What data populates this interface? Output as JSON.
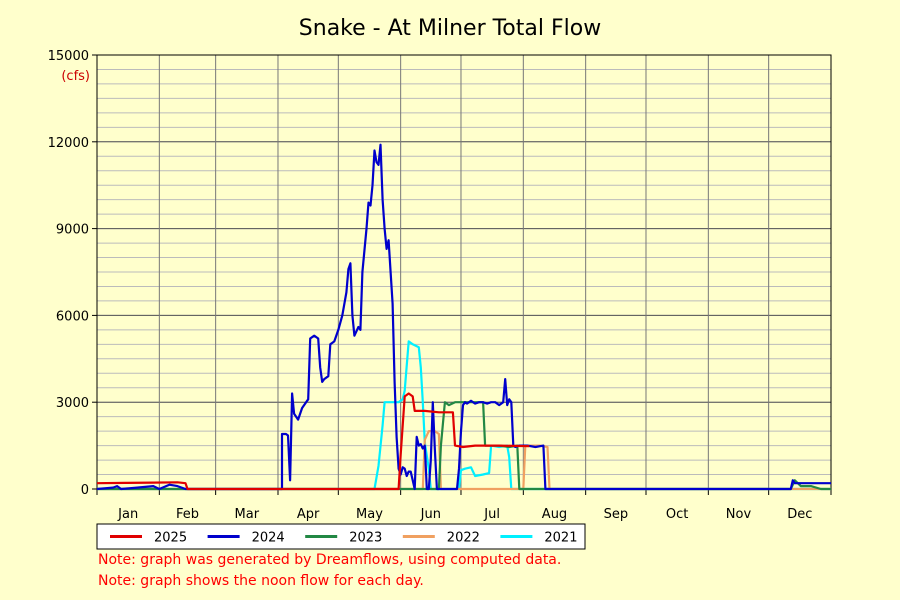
{
  "chart_data": {
    "type": "line",
    "title": "Snake - At Milner Total Flow",
    "ylabel": "(cfs)",
    "ylim": [
      0,
      15000
    ],
    "yticks": [
      0,
      3000,
      6000,
      9000,
      12000,
      15000
    ],
    "yticklabels": [
      "0",
      "3000",
      "6000",
      "9000",
      "12000",
      "15000"
    ],
    "xlim": [
      0,
      365
    ],
    "months": [
      "Jan",
      "Feb",
      "Mar",
      "Apr",
      "May",
      "Jun",
      "Jul",
      "Aug",
      "Sep",
      "Oct",
      "Nov",
      "Dec"
    ],
    "grid": true,
    "legend_position": "bottom",
    "series": [
      {
        "name": "2025",
        "color": "#e00000",
        "points": [
          [
            0,
            200
          ],
          [
            14,
            210
          ],
          [
            28,
            220
          ],
          [
            40,
            230
          ],
          [
            44,
            200
          ],
          [
            45,
            0
          ],
          [
            90,
            0
          ],
          [
            120,
            0
          ],
          [
            145,
            0
          ],
          [
            150,
            0
          ],
          [
            151,
            1200
          ],
          [
            153,
            3200
          ],
          [
            155,
            3300
          ],
          [
            157,
            3200
          ],
          [
            158,
            2700
          ],
          [
            163,
            2700
          ],
          [
            170,
            2650
          ],
          [
            176,
            2650
          ],
          [
            176,
            2650
          ],
          [
            177,
            2650
          ],
          [
            178,
            1500
          ],
          [
            182,
            1450
          ],
          [
            188,
            1500
          ],
          [
            200,
            1500
          ],
          [
            215,
            1480
          ]
        ]
      },
      {
        "name": "2024",
        "color": "#0000cc",
        "points": [
          [
            0,
            0
          ],
          [
            8,
            50
          ],
          [
            10,
            100
          ],
          [
            12,
            0
          ],
          [
            20,
            50
          ],
          [
            28,
            100
          ],
          [
            31,
            0
          ],
          [
            36,
            150
          ],
          [
            40,
            100
          ],
          [
            44,
            0
          ],
          [
            80,
            0
          ],
          [
            92,
            0
          ],
          [
            92,
            1900
          ],
          [
            94,
            1900
          ],
          [
            95,
            1850
          ],
          [
            96,
            300
          ],
          [
            97,
            3300
          ],
          [
            98,
            2600
          ],
          [
            100,
            2400
          ],
          [
            102,
            2800
          ],
          [
            104,
            3000
          ],
          [
            105,
            3100
          ],
          [
            106,
            5200
          ],
          [
            108,
            5300
          ],
          [
            110,
            5200
          ],
          [
            111,
            4200
          ],
          [
            112,
            3700
          ],
          [
            113,
            3800
          ],
          [
            115,
            3900
          ],
          [
            116,
            5000
          ],
          [
            118,
            5100
          ],
          [
            120,
            5500
          ],
          [
            122,
            6000
          ],
          [
            124,
            6800
          ],
          [
            125,
            7600
          ],
          [
            126,
            7800
          ],
          [
            127,
            6000
          ],
          [
            128,
            5300
          ],
          [
            130,
            5600
          ],
          [
            131,
            5500
          ],
          [
            132,
            7500
          ],
          [
            134,
            9000
          ],
          [
            135,
            9900
          ],
          [
            136,
            9800
          ],
          [
            137,
            10500
          ],
          [
            138,
            11700
          ],
          [
            139,
            11300
          ],
          [
            140,
            11200
          ],
          [
            141,
            11900
          ],
          [
            142,
            10000
          ],
          [
            143,
            9000
          ],
          [
            144,
            8300
          ],
          [
            145,
            8600
          ],
          [
            146,
            7500
          ],
          [
            147,
            6400
          ],
          [
            148,
            3700
          ],
          [
            149,
            1800
          ],
          [
            150,
            700
          ],
          [
            151,
            500
          ],
          [
            152,
            750
          ],
          [
            153,
            700
          ],
          [
            154,
            450
          ],
          [
            155,
            600
          ],
          [
            156,
            600
          ],
          [
            157,
            300
          ],
          [
            158,
            0
          ],
          [
            159,
            1800
          ],
          [
            160,
            1500
          ],
          [
            161,
            1550
          ],
          [
            162,
            1400
          ],
          [
            163,
            1500
          ],
          [
            164,
            0
          ],
          [
            165,
            0
          ],
          [
            166,
            1000
          ],
          [
            167,
            3000
          ],
          [
            168,
            1400
          ],
          [
            169,
            0
          ],
          [
            179,
            0
          ],
          [
            180,
            700
          ],
          [
            181,
            2000
          ],
          [
            182,
            2900
          ],
          [
            183,
            3000
          ],
          [
            184,
            2950
          ],
          [
            186,
            3050
          ],
          [
            188,
            2950
          ],
          [
            190,
            3000
          ],
          [
            192,
            3000
          ],
          [
            194,
            2950
          ],
          [
            196,
            3000
          ],
          [
            198,
            3000
          ],
          [
            200,
            2900
          ],
          [
            202,
            3000
          ],
          [
            203,
            3800
          ],
          [
            204,
            2900
          ],
          [
            205,
            3100
          ],
          [
            206,
            3000
          ],
          [
            207,
            1500
          ],
          [
            208,
            1450
          ],
          [
            210,
            1500
          ],
          [
            214,
            1500
          ],
          [
            218,
            1450
          ],
          [
            222,
            1500
          ],
          [
            223,
            0
          ],
          [
            240,
            0
          ],
          [
            300,
            0
          ],
          [
            345,
            0
          ],
          [
            346,
            300
          ],
          [
            347,
            200
          ],
          [
            355,
            200
          ],
          [
            365,
            200
          ]
        ]
      },
      {
        "name": "2023",
        "color": "#228844",
        "points": [
          [
            0,
            0
          ],
          [
            150,
            0
          ],
          [
            170,
            0
          ],
          [
            171,
            1500
          ],
          [
            173,
            3000
          ],
          [
            175,
            2900
          ],
          [
            178,
            3000
          ],
          [
            185,
            3000
          ],
          [
            190,
            3000
          ],
          [
            192,
            3000
          ],
          [
            193,
            1500
          ],
          [
            196,
            1500
          ],
          [
            200,
            1500
          ],
          [
            205,
            1450
          ],
          [
            209,
            1500
          ],
          [
            210,
            0
          ],
          [
            230,
            0
          ],
          [
            345,
            0
          ],
          [
            347,
            300
          ],
          [
            350,
            100
          ],
          [
            355,
            100
          ],
          [
            360,
            0
          ],
          [
            365,
            0
          ]
        ]
      },
      {
        "name": "2022",
        "color": "#f0a060",
        "points": [
          [
            0,
            0
          ],
          [
            150,
            0
          ],
          [
            162,
            0
          ],
          [
            163,
            1700
          ],
          [
            165,
            2000
          ],
          [
            168,
            2000
          ],
          [
            170,
            1900
          ],
          [
            171,
            0
          ],
          [
            175,
            0
          ],
          [
            212,
            0
          ],
          [
            213,
            1500
          ],
          [
            220,
            1500
          ],
          [
            224,
            1450
          ],
          [
            225,
            0
          ],
          [
            365,
            0
          ]
        ]
      },
      {
        "name": "2021",
        "color": "#00f0ff",
        "points": [
          [
            0,
            0
          ],
          [
            138,
            0
          ],
          [
            140,
            800
          ],
          [
            142,
            2200
          ],
          [
            143,
            3000
          ],
          [
            146,
            3000
          ],
          [
            150,
            3000
          ],
          [
            152,
            3100
          ],
          [
            153,
            3400
          ],
          [
            155,
            5100
          ],
          [
            157,
            5000
          ],
          [
            160,
            4900
          ],
          [
            161,
            4200
          ],
          [
            162,
            3000
          ],
          [
            163,
            1600
          ],
          [
            165,
            700
          ],
          [
            166,
            0
          ],
          [
            180,
            0
          ],
          [
            181,
            650
          ],
          [
            183,
            700
          ],
          [
            186,
            750
          ],
          [
            188,
            450
          ],
          [
            192,
            500
          ],
          [
            195,
            550
          ],
          [
            196,
            1500
          ],
          [
            200,
            1450
          ],
          [
            204,
            1500
          ],
          [
            205,
            1100
          ],
          [
            206,
            0
          ],
          [
            365,
            0
          ]
        ]
      }
    ]
  },
  "notes": [
    "Note: graph was generated by Dreamflows, using computed data.",
    "Note: graph shows the noon flow for each day."
  ]
}
